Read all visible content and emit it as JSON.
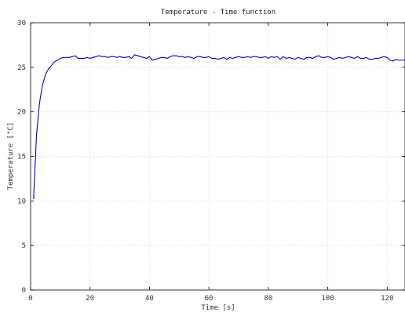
{
  "chart_data": {
    "type": "line",
    "title": "Temperature - Time function",
    "xlabel": "Time [s]",
    "ylabel": "Temperature [°C]",
    "xlim": [
      0,
      126
    ],
    "ylim": [
      0,
      30
    ],
    "xticks": [
      0,
      20,
      40,
      60,
      80,
      100,
      120
    ],
    "yticks": [
      0,
      5,
      10,
      15,
      20,
      25,
      30
    ],
    "grid": true,
    "line_color": "#0000cc",
    "series": [
      {
        "x": [
          1,
          2,
          3,
          4,
          5,
          6,
          7,
          8,
          9,
          10,
          11,
          12,
          13,
          14,
          15,
          16,
          17,
          18,
          19,
          20,
          21,
          22,
          23,
          24,
          25,
          26,
          27,
          28,
          29,
          30,
          31,
          32,
          33,
          34,
          35,
          36,
          37,
          38,
          39,
          40,
          41,
          42,
          43,
          44,
          45,
          46,
          47,
          48,
          49,
          50,
          51,
          52,
          53,
          54,
          55,
          56,
          57,
          58,
          59,
          60,
          61,
          62,
          63,
          64,
          65,
          66,
          67,
          68,
          69,
          70,
          71,
          72,
          73,
          74,
          75,
          76,
          77,
          78,
          79,
          80,
          81,
          82,
          83,
          84,
          85,
          86,
          87,
          88,
          89,
          90,
          91,
          92,
          93,
          94,
          95,
          96,
          97,
          98,
          99,
          100,
          101,
          102,
          103,
          104,
          105,
          106,
          107,
          108,
          109,
          110,
          111,
          112,
          113,
          114,
          115,
          116,
          117,
          118,
          119,
          120,
          121,
          122,
          123,
          124,
          125,
          126
        ],
        "y": [
          10.2,
          17.5,
          21.0,
          23.0,
          24.2,
          24.8,
          25.2,
          25.6,
          25.8,
          26.0,
          26.1,
          26.1,
          26.1,
          26.2,
          26.3,
          26.0,
          26.0,
          26.0,
          26.1,
          26.0,
          26.1,
          26.2,
          26.3,
          26.2,
          26.2,
          26.1,
          26.2,
          26.2,
          26.1,
          26.2,
          26.1,
          26.1,
          26.2,
          26.0,
          26.4,
          26.3,
          26.2,
          26.1,
          26.0,
          26.2,
          25.8,
          25.9,
          26.0,
          26.1,
          26.1,
          26.0,
          26.2,
          26.3,
          26.3,
          26.2,
          26.2,
          26.1,
          26.2,
          26.1,
          26.0,
          26.2,
          26.2,
          26.1,
          26.1,
          26.2,
          26.0,
          26.0,
          25.9,
          26.0,
          26.1,
          25.9,
          26.1,
          26.0,
          26.1,
          26.2,
          26.1,
          26.1,
          26.2,
          26.1,
          26.2,
          26.2,
          26.1,
          26.1,
          26.2,
          26.0,
          26.2,
          26.1,
          26.2,
          25.9,
          26.2,
          26.0,
          26.1,
          26.0,
          25.9,
          26.1,
          26.0,
          25.9,
          26.1,
          26.1,
          26.0,
          26.2,
          26.3,
          26.1,
          26.1,
          26.2,
          26.1,
          25.9,
          26.0,
          26.1,
          26.0,
          26.1,
          26.2,
          26.1,
          26.0,
          26.2,
          26.0,
          26.0,
          26.1,
          25.9,
          25.9,
          26.0,
          26.0,
          26.1,
          26.2,
          26.1,
          25.8,
          25.7,
          25.9,
          25.8,
          25.8,
          25.8
        ]
      }
    ]
  }
}
